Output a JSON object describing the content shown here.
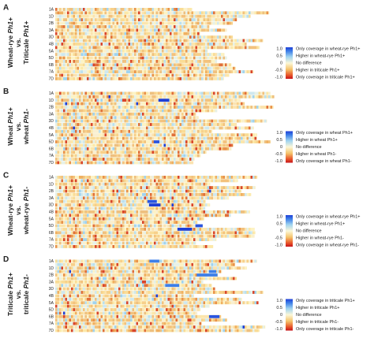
{
  "panels": [
    {
      "label": "A",
      "ylabel": [
        [
          {
            "text": "Wheat-rye ",
            "italic": false
          },
          {
            "text": "Ph1+",
            "italic": true
          }
        ],
        [
          {
            "text": "vs.",
            "italic": false
          }
        ],
        [
          {
            "text": "Triticale ",
            "italic": false
          },
          {
            "text": "Ph1+",
            "italic": true
          }
        ]
      ],
      "rows": [
        "1A",
        "1D",
        "2B",
        "3A",
        "3D",
        "4B",
        "5A",
        "5D",
        "6B",
        "7A",
        "7D"
      ],
      "legend": {
        "ticks": [
          "1.0",
          "0.5",
          "0",
          "-0.5",
          "-1.0"
        ],
        "labels": [
          "Only coverage in wheat-rye Ph1+",
          "Higher in wheat-rye Ph1+",
          "No difference",
          "Higher in triticale Ph1+",
          "Only coverage in triticale Ph1+"
        ]
      }
    },
    {
      "label": "B",
      "ylabel": [
        [
          {
            "text": "Wheat ",
            "italic": false
          },
          {
            "text": "Ph1+",
            "italic": true
          }
        ],
        [
          {
            "text": "vs.",
            "italic": false
          }
        ],
        [
          {
            "text": "wheat ",
            "italic": false
          },
          {
            "text": "Ph1-",
            "italic": true
          }
        ]
      ],
      "rows": [
        "1A",
        "1D",
        "2B",
        "3A",
        "3D",
        "4B",
        "5A",
        "5D",
        "6B",
        "7A",
        "7D"
      ],
      "legend": {
        "ticks": [
          "1.0",
          "0.5",
          "0",
          "-0.5",
          "-1.0"
        ],
        "labels": [
          "Only coverage in wheat Ph1+",
          "Higher in wheat Ph1+",
          "No difference",
          "Higher in wheat Ph1-",
          "Only coverage in wheat Ph1-"
        ]
      }
    },
    {
      "label": "C",
      "ylabel": [
        [
          {
            "text": "Wheat-rye ",
            "italic": false
          },
          {
            "text": "Ph1+",
            "italic": true
          }
        ],
        [
          {
            "text": "vs.",
            "italic": false
          }
        ],
        [
          {
            "text": "wheat-rye ",
            "italic": false
          },
          {
            "text": "Ph1-",
            "italic": true
          }
        ]
      ],
      "rows": [
        "1A",
        "1D",
        "2B",
        "3A",
        "3D",
        "4B",
        "5A",
        "5D",
        "6B",
        "7A",
        "7D"
      ],
      "legend": {
        "ticks": [
          "1.0",
          "0.5",
          "0",
          "-0.5",
          "-1.0"
        ],
        "labels": [
          "Only coverage in wheat-rye Ph1+",
          "Higher in wheat-rye Ph1+",
          "No difference",
          "Higher in wheat-rye Ph1-",
          "Only coverage in wheat-rye Ph1-"
        ]
      }
    },
    {
      "label": "D",
      "ylabel": [
        [
          {
            "text": "Triticale ",
            "italic": false
          },
          {
            "text": "Ph1+",
            "italic": true
          }
        ],
        [
          {
            "text": "vs.",
            "italic": false
          }
        ],
        [
          {
            "text": "triticale ",
            "italic": false
          },
          {
            "text": "Ph1-",
            "italic": true
          }
        ]
      ],
      "rows": [
        "1A",
        "1D",
        "2B",
        "3A",
        "3D",
        "4B",
        "5A",
        "5D",
        "6B",
        "7A",
        "7D"
      ],
      "legend": {
        "ticks": [
          "1.0",
          "0.5",
          "0",
          "-0.5",
          "-1.0"
        ],
        "labels": [
          "Only coverage in triticale Ph1+",
          "Higher in triticale Ph1+",
          "No difference",
          "Higher in triticale Ph1-",
          "Only coverage in triticale Ph1-"
        ]
      }
    }
  ]
}
